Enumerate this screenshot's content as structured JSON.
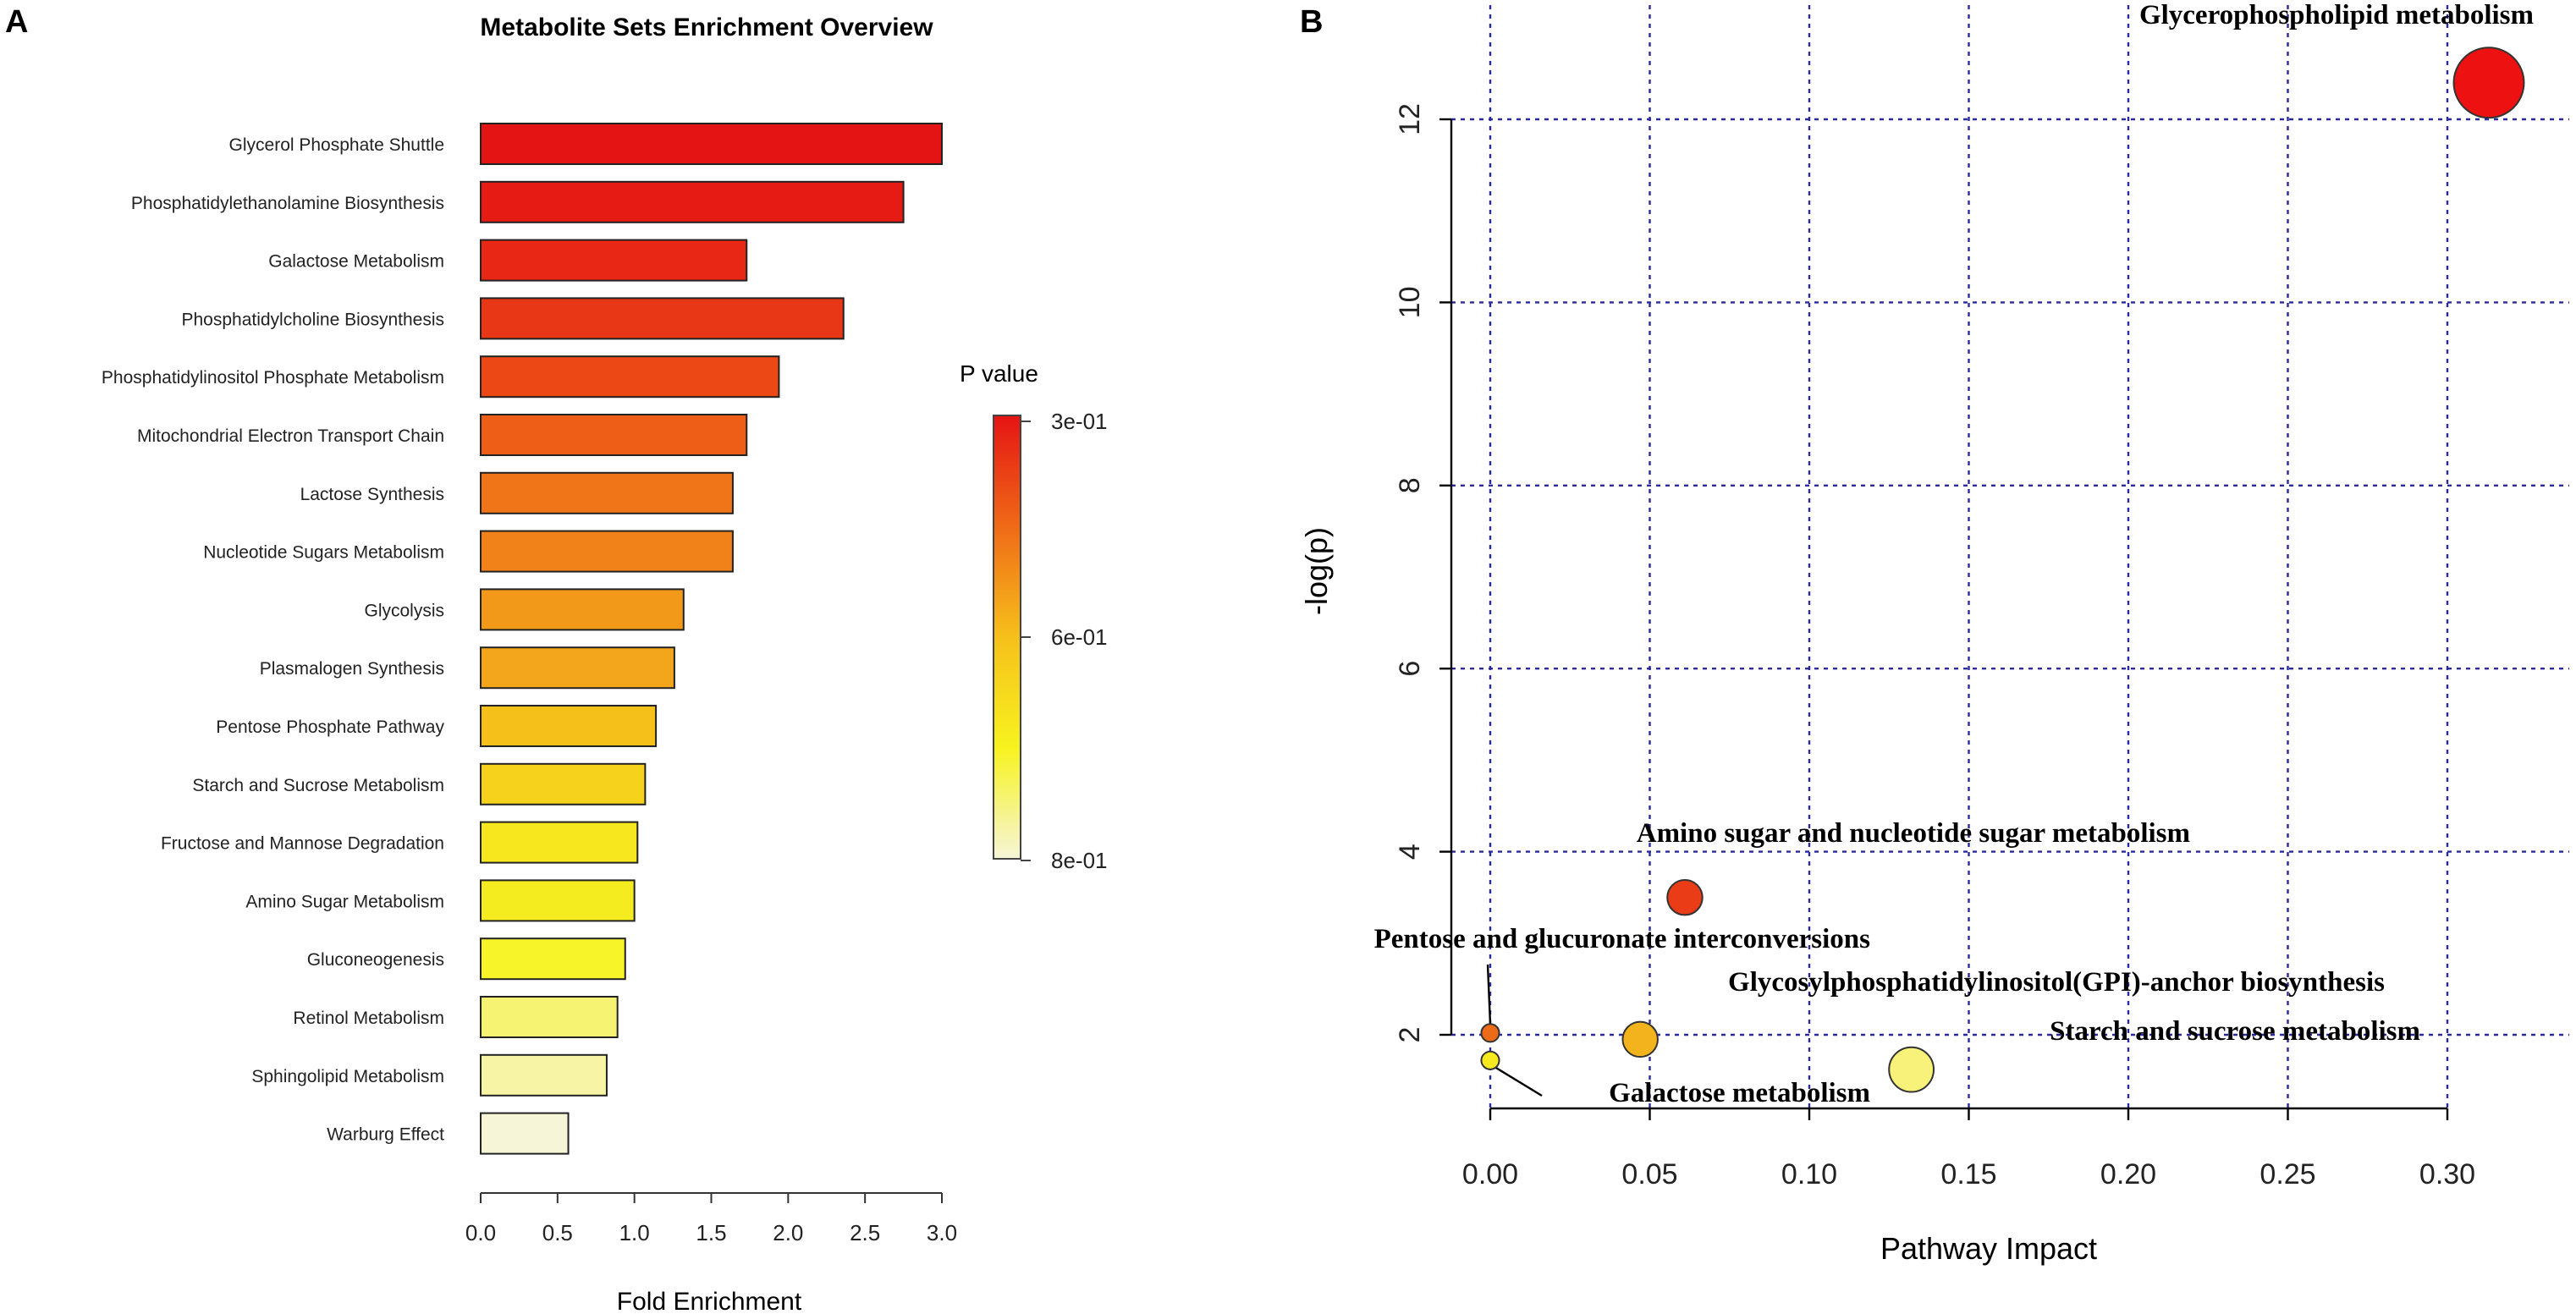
{
  "panels": {
    "a_label": "A",
    "b_label": "B"
  },
  "chart_data": [
    {
      "type": "bar",
      "orientation": "horizontal",
      "title": "Metabolite Sets Enrichment Overview",
      "xlabel": "Fold Enrichment",
      "ylabel": "",
      "xlim": [
        0,
        3.0
      ],
      "xticks": [
        "0.0",
        "0.5",
        "1.0",
        "1.5",
        "2.0",
        "2.5",
        "3.0"
      ],
      "categories": [
        "Glycerol Phosphate Shuttle",
        "Phosphatidylethanolamine Biosynthesis",
        "Galactose Metabolism",
        "Phosphatidylcholine Biosynthesis",
        "Phosphatidylinositol Phosphate Metabolism",
        "Mitochondrial Electron Transport Chain",
        "Lactose Synthesis",
        "Nucleotide Sugars Metabolism",
        "Glycolysis",
        "Plasmalogen Synthesis",
        "Pentose Phosphate Pathway",
        "Starch and Sucrose Metabolism",
        "Fructose and Mannose Degradation",
        "Amino Sugar Metabolism",
        "Gluconeogenesis",
        "Retinol Metabolism",
        "Sphingolipid Metabolism",
        "Warburg Effect"
      ],
      "values": [
        3.0,
        2.75,
        1.73,
        2.36,
        1.94,
        1.73,
        1.64,
        1.64,
        1.32,
        1.26,
        1.14,
        1.07,
        1.02,
        1.0,
        0.94,
        0.89,
        0.82,
        0.57
      ],
      "colors": [
        "#e51414",
        "#e51b14",
        "#e82715",
        "#e83716",
        "#eb4816",
        "#ee5e17",
        "#f07518",
        "#f18119",
        "#f3991a",
        "#f3a51b",
        "#f6c01b",
        "#f6d21d",
        "#f6e71e",
        "#f5ec20",
        "#f7f42a",
        "#f7f372",
        "#f7f5a5",
        "#f6f5d8"
      ],
      "legend": {
        "title": "P value",
        "labels": [
          "3e-01",
          "6e-01",
          "8e-01"
        ],
        "colors": [
          "#e51414",
          "#ef6a17",
          "#f6c01b",
          "#f7f31f",
          "#f6f5d8"
        ]
      }
    },
    {
      "type": "scatter",
      "xlabel": "Pathway Impact",
      "ylabel": "-log(p)",
      "xlim": [
        -0.015,
        0.33
      ],
      "ylim": [
        1.25,
        12.8
      ],
      "xticks": [
        "0.00",
        "0.05",
        "0.10",
        "0.15",
        "0.20",
        "0.25",
        "0.30"
      ],
      "yticks": [
        "2",
        "4",
        "6",
        "8",
        "10",
        "12"
      ],
      "grid": true,
      "points": [
        {
          "label": "Glycerophospholipid metabolism",
          "x": 0.313,
          "y": 12.4,
          "r": 0.011,
          "color": "#ee1111"
        },
        {
          "label": "Amino sugar and nucleotide sugar metabolism",
          "x": 0.061,
          "y": 3.5,
          "r": 0.0055,
          "color": "#ea3c16"
        },
        {
          "label": "Pentose and glucuronate interconversions",
          "x": 0.0,
          "y": 2.02,
          "r": 0.0028,
          "color": "#ec6b18"
        },
        {
          "label": "Glycosylphosphatidylinositol(GPI)-anchor biosynthesis",
          "x": 0.047,
          "y": 1.95,
          "r": 0.0055,
          "color": "#f3b31c"
        },
        {
          "label": "Starch and sucrose metabolism",
          "x": 0.132,
          "y": 1.62,
          "r": 0.007,
          "color": "#f8f17a"
        },
        {
          "label": "Galactose metabolism",
          "x": 0.0,
          "y": 1.72,
          "r": 0.0028,
          "color": "#f6e920"
        }
      ]
    }
  ]
}
